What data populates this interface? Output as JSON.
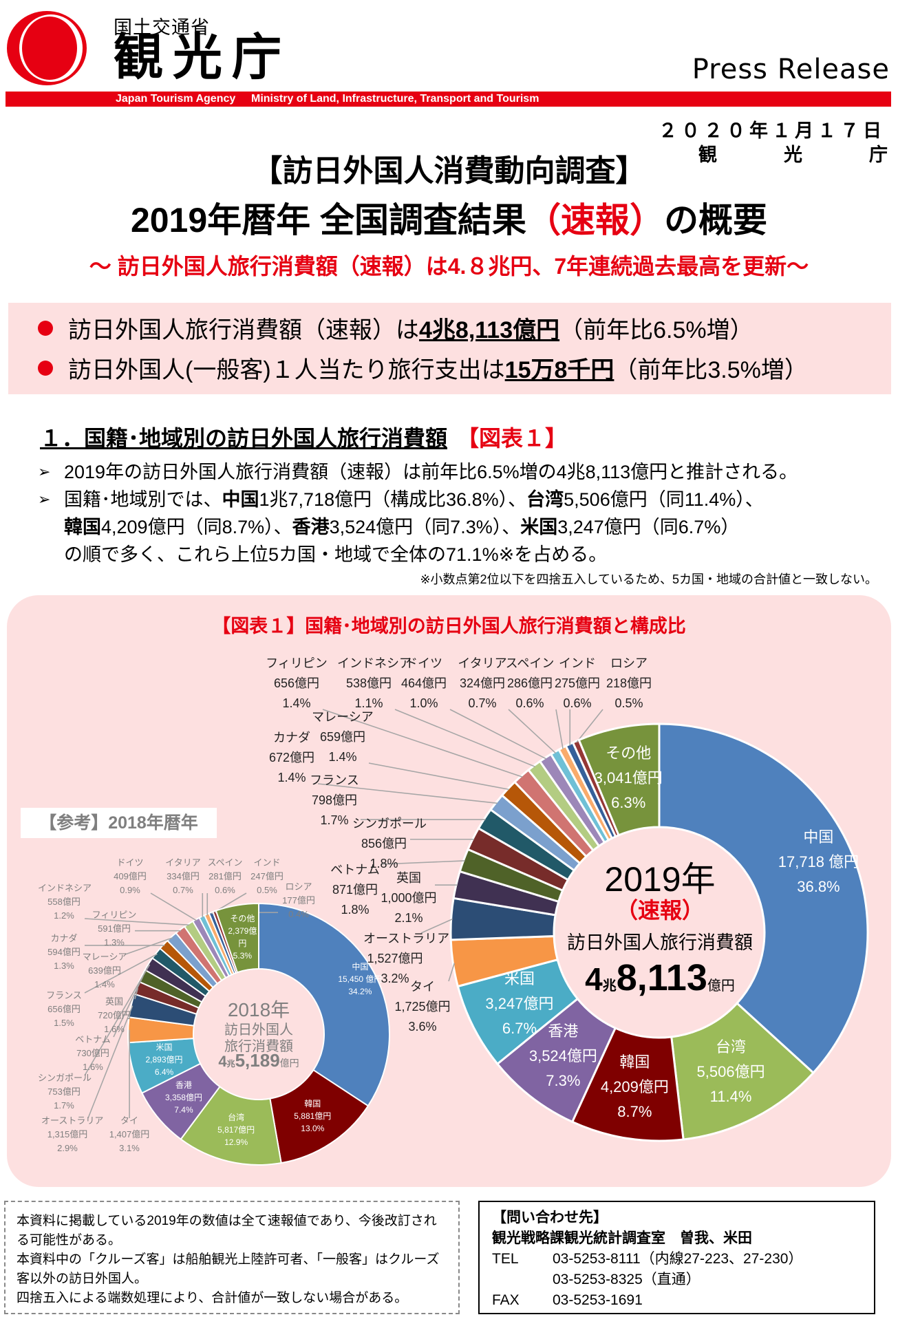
{
  "header": {
    "ministry": "国土交通省",
    "agency": "観光庁",
    "press_release": "Press Release",
    "bar_agency_en": "Japan Tourism Agency",
    "bar_ministry_en": "Ministry of Land, Infrastructure, Transport and Tourism",
    "date": "２０２０年１月１７日",
    "issuer": [
      "観",
      "光",
      "庁"
    ],
    "brand_red": "#e60012"
  },
  "title": {
    "line1": "【訪日外国人消費動向調査】",
    "line2_a": "2019年暦年 全国調査結果",
    "line2_red": "（速報）",
    "line2_b": "の概要",
    "subtitle": "～ 訪日外国人旅行消費額（速報）は4.８兆円、7年連続過去最高を更新～"
  },
  "highlights": [
    {
      "pre": "訪日外国人旅行消費額（速報）は",
      "bold": "4兆8,113億円",
      "post": "（前年比6.5%増）"
    },
    {
      "pre": "訪日外国人(一般客)１人当たり旅行支出は",
      "bold": "15万8千円",
      "post": "（前年比3.5%増）"
    }
  ],
  "section": {
    "heading": "１．国籍･地域別の訪日外国人旅行消費額",
    "ref": "【図表１】",
    "bullet1": "2019年の訪日外国人旅行消費額（速報）は前年比6.5%増の4兆8,113億円と推計される。",
    "bullet2": [
      {
        "t": "国籍･地域別では、"
      },
      {
        "b": "中国"
      },
      {
        "t": "1兆7,718億円（構成比36.8%）、"
      },
      {
        "b": "台湾"
      },
      {
        "t": "5,506億円（同11.4%）、"
      },
      {
        "b": "韓国"
      },
      {
        "t": "4,209億円（同8.7%）、"
      },
      {
        "b": "香港"
      },
      {
        "t": "3,524億円（同7.3%）、"
      },
      {
        "b": "米国"
      },
      {
        "t": "3,247億円（同6.7%）"
      },
      {
        "t": "の順で多く、これら上位5カ国・地域で全体の71.1%※を占める。"
      }
    ],
    "note": "※小数点第2位以下を四捨五入しているため、5カ国・地域の合計値と一致しない。"
  },
  "chart_data": [
    {
      "type": "pie",
      "variant": "donut",
      "title": "【図表１】国籍･地域別の訪日外国人旅行消費額と構成比",
      "center": {
        "year": "2019年",
        "tag": "（速報）",
        "label": "訪日外国人旅行消費額",
        "total_a": "4",
        "total_b": "兆",
        "total_c": "8,113",
        "total_d": "億円"
      },
      "unit": "億円",
      "segments": [
        {
          "name": "中国",
          "amount": "17,718 億円",
          "pct_label": "36.8%",
          "pct": 36.8,
          "color": "#4f81bd"
        },
        {
          "name": "台湾",
          "amount": "5,506億円",
          "pct_label": "11.4%",
          "pct": 11.4,
          "color": "#9bbb59"
        },
        {
          "name": "韓国",
          "amount": "4,209億円",
          "pct_label": "8.7%",
          "pct": 8.7,
          "color": "#7f0000"
        },
        {
          "name": "香港",
          "amount": "3,524億円",
          "pct_label": "7.3%",
          "pct": 7.3,
          "color": "#8064a2"
        },
        {
          "name": "米国",
          "amount": "3,247億円",
          "pct_label": "6.7%",
          "pct": 6.7,
          "color": "#4bacc6"
        },
        {
          "name": "タイ",
          "amount": "1,725億円",
          "pct_label": "3.6%",
          "pct": 3.6,
          "color": "#f79646"
        },
        {
          "name": "オーストラリア",
          "amount": "1,527億円",
          "pct_label": "3.2%",
          "pct": 3.2,
          "color": "#2c4d75"
        },
        {
          "name": "英国",
          "amount": "1,000億円",
          "pct_label": "2.1%",
          "pct": 2.1,
          "color": "#403152"
        },
        {
          "name": "ベトナム",
          "amount": "871億円",
          "pct_label": "1.8%",
          "pct": 1.8,
          "color": "#4f6228"
        },
        {
          "name": "シンガポール",
          "amount": "856億円",
          "pct_label": "1.8%",
          "pct": 1.8,
          "color": "#772c2a"
        },
        {
          "name": "フランス",
          "amount": "798億円",
          "pct_label": "1.7%",
          "pct": 1.7,
          "color": "#215968"
        },
        {
          "name": "カナダ",
          "amount": "672億円",
          "pct_label": "1.4%",
          "pct": 1.4,
          "color": "#7ba0cd"
        },
        {
          "name": "マレーシア",
          "amount": "659億円",
          "pct_label": "1.4%",
          "pct": 1.4,
          "color": "#b65708"
        },
        {
          "name": "フィリピン",
          "amount": "656億円",
          "pct_label": "1.4%",
          "pct": 1.4,
          "color": "#d07471"
        },
        {
          "name": "インドネシア",
          "amount": "538億円",
          "pct_label": "1.1%",
          "pct": 1.1,
          "color": "#b3cc82"
        },
        {
          "name": "ドイツ",
          "amount": "464億円",
          "pct_label": "1.0%",
          "pct": 1.0,
          "color": "#9c87b8"
        },
        {
          "name": "イタリア",
          "amount": "324億円",
          "pct_label": "0.7%",
          "pct": 0.7,
          "color": "#6fc0d6"
        },
        {
          "name": "スペイン",
          "amount": "286億円",
          "pct_label": "0.6%",
          "pct": 0.6,
          "color": "#f9ab6b"
        },
        {
          "name": "インド",
          "amount": "275億円",
          "pct_label": "0.6%",
          "pct": 0.6,
          "color": "#35609a"
        },
        {
          "name": "ロシア",
          "amount": "218億円",
          "pct_label": "0.5%",
          "pct": 0.5,
          "color": "#953735"
        },
        {
          "name": "その他",
          "amount": "3,041億円",
          "pct_label": "6.3%",
          "pct": 6.3,
          "color": "#77933c"
        }
      ]
    },
    {
      "type": "pie",
      "variant": "donut",
      "title": "【参考】2018年暦年",
      "center": {
        "year": "2018年",
        "label1": "訪日外国人",
        "label2": "旅行消費額",
        "total_a": "4",
        "total_b": "兆",
        "total_c": "5,189",
        "total_d": "億円"
      },
      "unit": "億円",
      "segments": [
        {
          "name": "中国",
          "amount": "15,450 億円",
          "pct_label": "34.2%",
          "pct": 34.2,
          "color": "#4f81bd"
        },
        {
          "name": "韓国",
          "amount": "5,881億円",
          "pct_label": "13.0%",
          "pct": 13.0,
          "color": "#7f0000"
        },
        {
          "name": "台湾",
          "amount": "5,817億円",
          "pct_label": "12.9%",
          "pct": 12.9,
          "color": "#9bbb59"
        },
        {
          "name": "香港",
          "amount": "3,358億円",
          "pct_label": "7.4%",
          "pct": 7.4,
          "color": "#8064a2"
        },
        {
          "name": "米国",
          "amount": "2,893億円",
          "pct_label": "6.4%",
          "pct": 6.4,
          "color": "#4bacc6"
        },
        {
          "name": "タイ",
          "amount": "1,407億円",
          "pct_label": "3.1%",
          "pct": 3.1,
          "color": "#f79646"
        },
        {
          "name": "オーストラリア",
          "amount": "1,315億円",
          "pct_label": "2.9%",
          "pct": 2.9,
          "color": "#2c4d75"
        },
        {
          "name": "英国",
          "amount": "720億円",
          "pct_label": "1.6%",
          "pct": 1.6,
          "color": "#772c2a"
        },
        {
          "name": "ベトナム",
          "amount": "730億円",
          "pct_label": "1.6%",
          "pct": 1.6,
          "color": "#4f6228"
        },
        {
          "name": "シンガポール",
          "amount": "753億円",
          "pct_label": "1.7%",
          "pct": 1.7,
          "color": "#403152"
        },
        {
          "name": "フランス",
          "amount": "656億円",
          "pct_label": "1.5%",
          "pct": 1.5,
          "color": "#215968"
        },
        {
          "name": "カナダ",
          "amount": "594億円",
          "pct_label": "1.3%",
          "pct": 1.3,
          "color": "#b65708"
        },
        {
          "name": "マレーシア",
          "amount": "639億円",
          "pct_label": "1.4%",
          "pct": 1.4,
          "color": "#7ba0cd"
        },
        {
          "name": "フィリピン",
          "amount": "591億円",
          "pct_label": "1.3%",
          "pct": 1.3,
          "color": "#d07471"
        },
        {
          "name": "インドネシア",
          "amount": "558億円",
          "pct_label": "1.2%",
          "pct": 1.2,
          "color": "#b3cc82"
        },
        {
          "name": "ドイツ",
          "amount": "409億円",
          "pct_label": "0.9%",
          "pct": 0.9,
          "color": "#9c87b8"
        },
        {
          "name": "イタリア",
          "amount": "334億円",
          "pct_label": "0.7%",
          "pct": 0.7,
          "color": "#6fc0d6"
        },
        {
          "name": "スペイン",
          "amount": "281億円",
          "pct_label": "0.6%",
          "pct": 0.6,
          "color": "#f9ab6b"
        },
        {
          "name": "インド",
          "amount": "247億円",
          "pct_label": "0.5%",
          "pct": 0.5,
          "color": "#35609a"
        },
        {
          "name": "ロシア",
          "amount": "177億円",
          "pct_label": "0.4%",
          "pct": 0.4,
          "color": "#953735"
        },
        {
          "name": "その他",
          "amount": "2,379億円",
          "pct_label": "5.3%",
          "pct": 5.3,
          "color": "#77933c"
        }
      ]
    }
  ],
  "footer": {
    "notes": [
      "本資料に掲載している2019年の数値は全て速報値であり、今後改訂される可能性がある。",
      "本資料中の「クルーズ客」は船舶観光上陸許可者、「一般客」はクルーズ客以外の訪日外国人。",
      "四捨五入による端数処理により、合計値が一致しない場合がある。"
    ],
    "contact": {
      "heading": "【問い合わせ先】",
      "dept": "観光戦略課観光統計調査室　曽我、米田",
      "tel_label": "TEL",
      "tel1": "03-5253-8111（内線27-223、27-230）",
      "tel2": "03-5253-8325（直通）",
      "fax_label": "FAX",
      "fax": "03-5253-1691"
    }
  }
}
